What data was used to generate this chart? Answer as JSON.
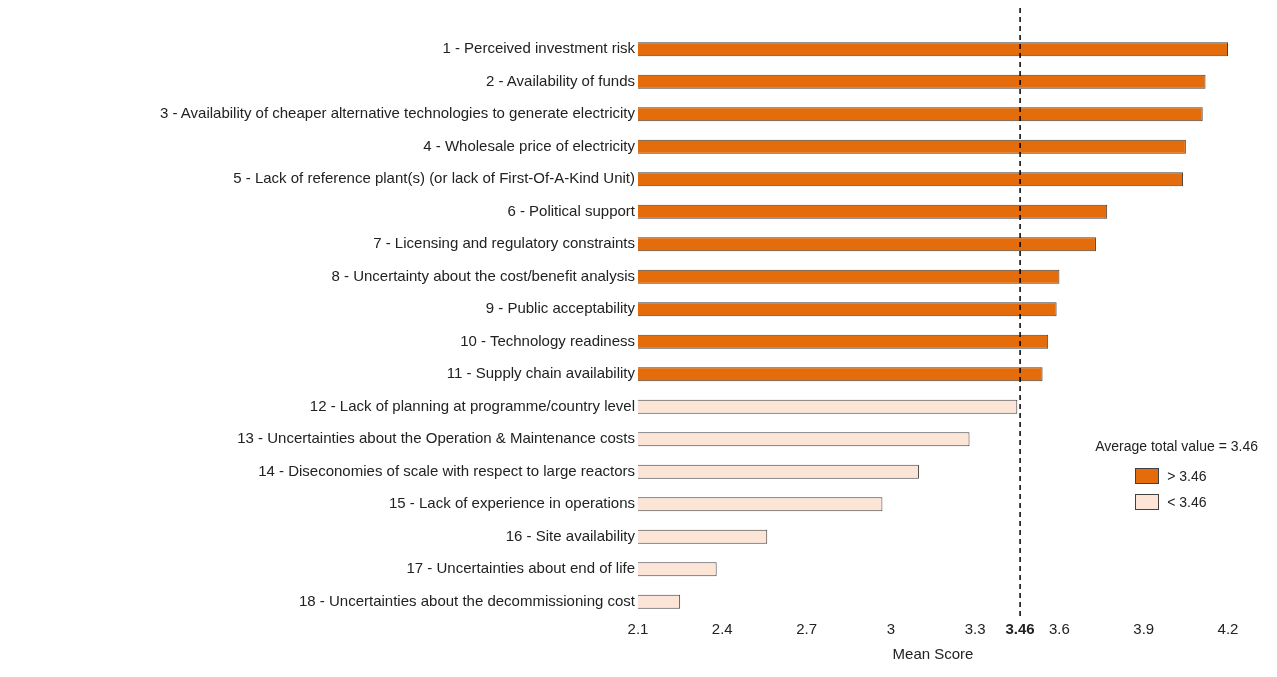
{
  "chart_data": {
    "type": "bar",
    "orientation": "horizontal",
    "xlabel": "Mean Score",
    "legend_title": "Average total value = 3.46",
    "categories": [
      "1 - Perceived investment risk",
      "2 - Availability of funds",
      "3 - Availability of cheaper alternative technologies to generate electricity",
      "4 - Wholesale price of electricity",
      "5 - Lack of reference plant(s) (or lack of First-Of-A-Kind Unit)",
      "6 - Political support",
      "7 - Licensing and regulatory constraints",
      "8 - Uncertainty about the cost/benefit analysis",
      "9 - Public acceptability",
      "10 - Technology readiness",
      "11 - Supply chain availability",
      "12 - Lack of planning at programme/country level",
      "13 - Uncertainties about the Operation & Maintenance costs",
      "14 - Diseconomies of scale with respect to large reactors",
      "15 - Lack of experience in operations",
      "16 - Site availability",
      "17 - Uncertainties about end of life",
      "18 - Uncertainties about the decommissioning cost"
    ],
    "series": [
      {
        "name": "> 3.46",
        "color": "#e46c0a",
        "values": [
          4.2,
          4.12,
          4.11,
          4.05,
          4.04,
          3.77,
          3.73,
          3.6,
          3.59,
          3.56,
          3.54,
          null,
          null,
          null,
          null,
          null,
          null,
          null
        ]
      },
      {
        "name": "< 3.46",
        "color": "#fce4d6",
        "values": [
          null,
          null,
          null,
          null,
          null,
          null,
          null,
          null,
          null,
          null,
          null,
          3.45,
          3.28,
          3.1,
          2.97,
          2.56,
          2.38,
          2.25
        ]
      }
    ],
    "xlim": [
      2.1,
      4.2
    ],
    "xticks": [
      2.1,
      2.4,
      2.7,
      3,
      3.3,
      3.46,
      3.6,
      3.9,
      4.2
    ],
    "ref_lines": [
      {
        "axis": "x",
        "value": 3.46,
        "color": "#000000",
        "line_style": "dashed"
      }
    ],
    "grid": false,
    "legend": "right"
  }
}
